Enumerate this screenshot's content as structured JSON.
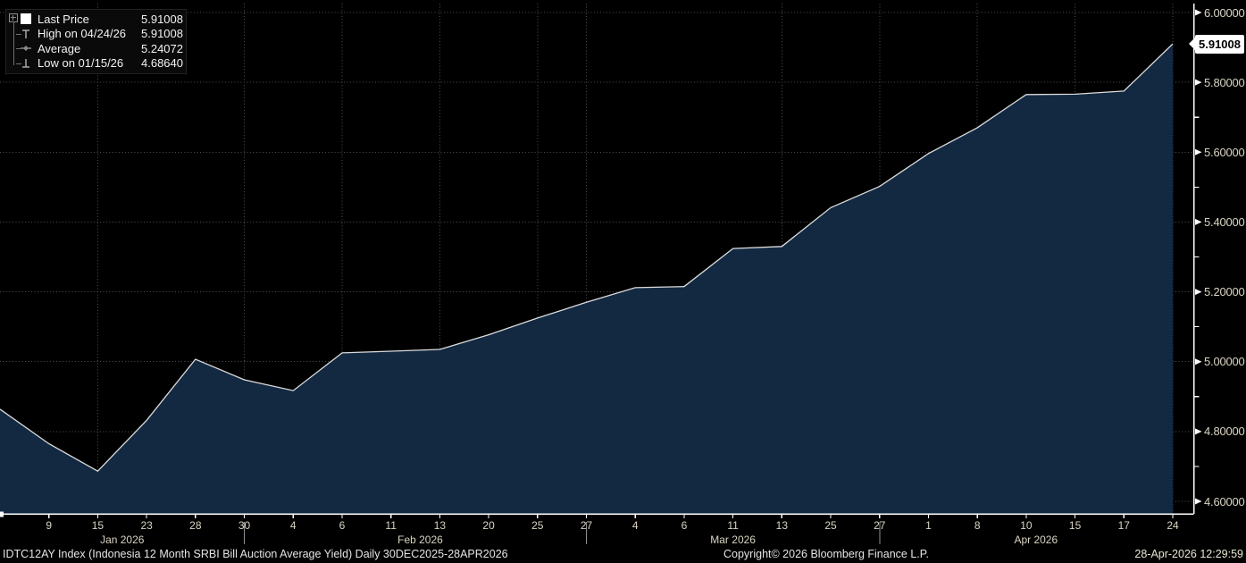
{
  "chart_data": {
    "type": "area",
    "title": "IDTC12AY Index (Indonesia 12 Month SRBI Bill Auction Average Yield) Daily 30DEC2025-28APR2026",
    "x": [
      "12/30/25",
      "01/09/26",
      "01/15/26",
      "01/23/26",
      "01/28/26",
      "01/30/26",
      "02/04/26",
      "02/06/26",
      "02/11/26",
      "02/13/26",
      "02/20/26",
      "02/25/26",
      "02/27/26",
      "03/04/26",
      "03/06/26",
      "03/11/26",
      "03/13/26",
      "03/25/26",
      "03/27/26",
      "04/01/26",
      "04/08/26",
      "04/10/26",
      "04/15/26",
      "04/17/26",
      "04/24/26"
    ],
    "values": [
      4.864,
      4.765,
      4.6864,
      4.832,
      5.007,
      4.948,
      4.917,
      5.025,
      5.03,
      5.035,
      5.077,
      5.125,
      5.17,
      5.212,
      5.215,
      5.324,
      5.33,
      5.441,
      5.502,
      5.596,
      5.67,
      5.765,
      5.766,
      5.775,
      5.91008
    ],
    "ylim": [
      4.6,
      6.0
    ],
    "grid": "dotted",
    "legend_position": "top-left",
    "last_price": 5.91008,
    "high": {
      "date": "04/24/26",
      "value": 5.91008
    },
    "low": {
      "date": "01/15/26",
      "value": 4.6864
    },
    "average": 5.24072,
    "y_major_ticks": [
      {
        "value": 6.0,
        "label": "6.00000"
      },
      {
        "value": 5.8,
        "label": "5.80000"
      },
      {
        "value": 5.6,
        "label": "5.60000"
      },
      {
        "value": 5.4,
        "label": "5.40000"
      },
      {
        "value": 5.2,
        "label": "5.20000"
      },
      {
        "value": 5.0,
        "label": "5.00000"
      },
      {
        "value": 4.8,
        "label": "4.80000"
      },
      {
        "value": 4.6,
        "label": "4.60000"
      }
    ],
    "y_minor_ticks": [
      5.9,
      5.7,
      5.5,
      5.3,
      5.1,
      4.9,
      4.7
    ],
    "x_ticks": [
      {
        "i": 1,
        "label": "9"
      },
      {
        "i": 2,
        "label": "15"
      },
      {
        "i": 3,
        "label": "23"
      },
      {
        "i": 4,
        "label": "28"
      },
      {
        "i": 5,
        "label": "30"
      },
      {
        "i": 6,
        "label": "4"
      },
      {
        "i": 7,
        "label": "6"
      },
      {
        "i": 8,
        "label": "11"
      },
      {
        "i": 9,
        "label": "13"
      },
      {
        "i": 10,
        "label": "20"
      },
      {
        "i": 11,
        "label": "25"
      },
      {
        "i": 12,
        "label": "27"
      },
      {
        "i": 13,
        "label": "4"
      },
      {
        "i": 14,
        "label": "6"
      },
      {
        "i": 15,
        "label": "11"
      },
      {
        "i": 16,
        "label": "13"
      },
      {
        "i": 17,
        "label": "25"
      },
      {
        "i": 18,
        "label": "27"
      },
      {
        "i": 19,
        "label": "1"
      },
      {
        "i": 20,
        "label": "8"
      },
      {
        "i": 21,
        "label": "10"
      },
      {
        "i": 22,
        "label": "15"
      },
      {
        "i": 23,
        "label": "17"
      },
      {
        "i": 24,
        "label": "24"
      }
    ],
    "months": [
      {
        "label": "Jan 2026",
        "center_i": 2.5
      },
      {
        "label": "Feb 2026",
        "center_i": 8.6
      },
      {
        "label": "Mar 2026",
        "center_i": 15.0
      },
      {
        "label": "Apr 2026",
        "center_i": 21.2
      }
    ],
    "month_divider_i": [
      5,
      12,
      18
    ],
    "vgrid_i": [
      2,
      5,
      7,
      9,
      11,
      12,
      16,
      18,
      20,
      22,
      24
    ],
    "colors": {
      "background": "#000000",
      "area_fill": "#132942",
      "line": "#dcdcdc",
      "grid": "#4d5257",
      "axis": "#ffffff",
      "axis_text": "#d9d4c2",
      "divider": "#909090",
      "tag_bg": "#ffffff",
      "tag_text": "#000000"
    }
  },
  "y_axis_tag": "5.91008",
  "legend": {
    "rows": [
      {
        "icon": "last-price-square",
        "label": "Last Price",
        "value": "5.91008"
      },
      {
        "icon": "high-marker",
        "label": "High on 04/24/26",
        "value": "5.91008"
      },
      {
        "icon": "average-marker",
        "label": "Average",
        "value": "5.24072"
      },
      {
        "icon": "low-marker",
        "label": "Low on 01/15/26",
        "value": "4.68640"
      }
    ]
  },
  "footer": {
    "title": "IDTC12AY Index (Indonesia 12 Month SRBI Bill Auction Average Yield) Daily 30DEC2025-28APR2026",
    "copyright": "Copyright© 2026 Bloomberg Finance L.P.",
    "timestamp": "28-Apr-2026 12:29:59"
  }
}
